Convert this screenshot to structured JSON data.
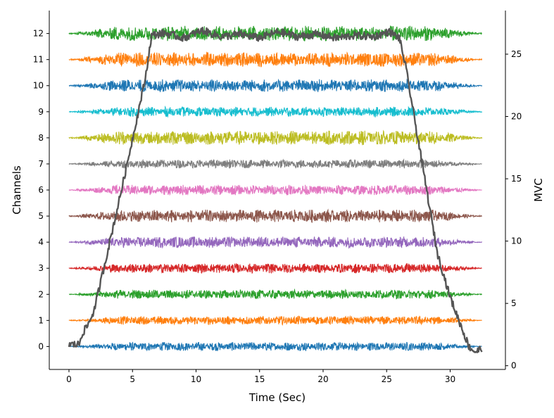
{
  "chart_data": {
    "type": "line",
    "xlabel": "Time (Sec)",
    "ylabel": "Channels",
    "ylabel_right": "MVC",
    "xlim": [
      -1.55,
      34.35
    ],
    "ylim": [
      -0.88,
      12.88
    ],
    "ylim_right": [
      -0.3,
      28.5
    ],
    "x_ticks": [
      0,
      5,
      10,
      15,
      20,
      25,
      30
    ],
    "y_ticks": [
      0,
      1,
      2,
      3,
      4,
      5,
      6,
      7,
      8,
      9,
      10,
      11,
      12
    ],
    "y_ticks_right": [
      0,
      5,
      10,
      15,
      20,
      25
    ],
    "grid": false,
    "legend": "none",
    "emg_duration": 32.5,
    "emg_series": [
      {
        "channel": 0,
        "color": "#1f77b4",
        "amplitude": 0.17
      },
      {
        "channel": 1,
        "color": "#ff7f0e",
        "amplitude": 0.17
      },
      {
        "channel": 2,
        "color": "#2ca02c",
        "amplitude": 0.18
      },
      {
        "channel": 3,
        "color": "#d62728",
        "amplitude": 0.19
      },
      {
        "channel": 4,
        "color": "#9467bd",
        "amplitude": 0.22
      },
      {
        "channel": 5,
        "color": "#8c564b",
        "amplitude": 0.25
      },
      {
        "channel": 6,
        "color": "#e377c2",
        "amplitude": 0.2
      },
      {
        "channel": 7,
        "color": "#7f7f7f",
        "amplitude": 0.17
      },
      {
        "channel": 8,
        "color": "#bcbd22",
        "amplitude": 0.28
      },
      {
        "channel": 9,
        "color": "#17becf",
        "amplitude": 0.19
      },
      {
        "channel": 10,
        "color": "#1f77b4",
        "amplitude": 0.25
      },
      {
        "channel": 11,
        "color": "#ff7f0e",
        "amplitude": 0.28
      },
      {
        "channel": 12,
        "color": "#2ca02c",
        "amplitude": 0.3
      }
    ],
    "mvc_series": {
      "color": "#555555",
      "x": [
        0,
        0.8,
        1.0,
        1.5,
        2.0,
        3.0,
        4.0,
        5.0,
        6.0,
        6.5,
        7.5,
        9.0,
        10.5,
        12.0,
        13.5,
        15.0,
        16.5,
        18.0,
        19.5,
        21.0,
        22.5,
        24.0,
        25.2,
        26.0,
        26.5,
        27.0,
        28.0,
        29.0,
        30.0,
        31.0,
        31.5,
        32.0,
        32.5
      ],
      "y": [
        1.7,
        1.7,
        2.5,
        3.3,
        4.5,
        9.0,
        13.5,
        18.2,
        23.0,
        26.5,
        26.7,
        26.3,
        26.9,
        26.4,
        26.6,
        26.3,
        26.8,
        26.4,
        26.6,
        26.3,
        26.5,
        26.4,
        26.8,
        26.3,
        24.0,
        21.0,
        15.0,
        9.0,
        5.5,
        2.8,
        1.5,
        1.1,
        1.4
      ]
    }
  }
}
